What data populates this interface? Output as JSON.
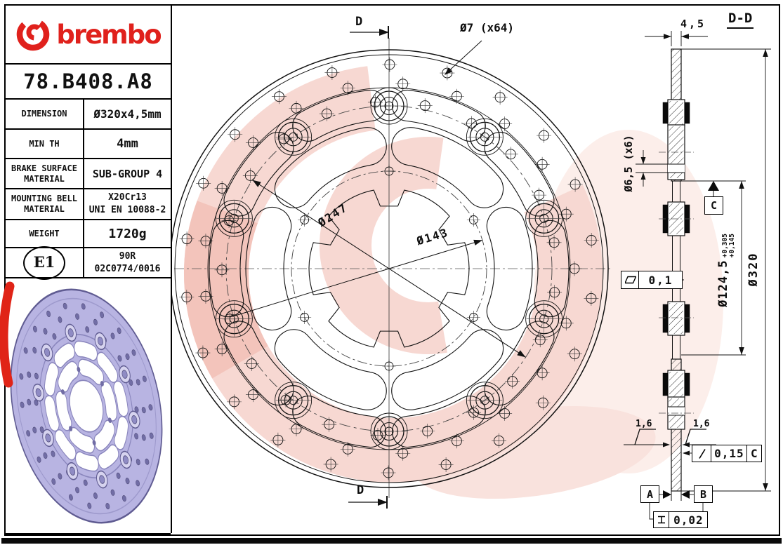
{
  "brand": {
    "wordmark": "brembo",
    "logo_color": "#e0211c"
  },
  "title_block": {
    "part_number": "78.B408.A8",
    "rows": [
      {
        "label": "DIMENSION",
        "value": "Ø320x4,5mm"
      },
      {
        "label": "MIN TH",
        "value": "4mm"
      },
      {
        "label": "BRAKE SURFACE\nMATERIAL",
        "value": "SUB-GROUP 4"
      },
      {
        "label": "MOUNTING BELL\nMATERIAL",
        "value": "X20Cr13\nUNI EN 10088-2"
      },
      {
        "label": "WEIGHT",
        "value": "1720g"
      }
    ],
    "homologation": {
      "mark": "E1",
      "value": "90R\n02C0774/0016"
    }
  },
  "front_view": {
    "hole_note": "Ø7 (x64)",
    "rivet_circle_diameter": "Ø247",
    "bolt_circle_diameter": "Ø143",
    "section_label_top": "D",
    "section_label_bottom": "D"
  },
  "section_view": {
    "title": "D-D",
    "disc_thickness": "4,5",
    "bell_hole_note": "Ø6,5 (x6)",
    "datum_c": "C",
    "flatness_tolerance": "0,1",
    "bell_diameter": "Ø124,5",
    "bell_tol_upper": "+0,305",
    "bell_tol_lower": "+0,145",
    "outer_diameter": "Ø320",
    "roughness_left": "1,6",
    "roughness_right": "1,6",
    "runout_tolerance": "0,15",
    "runout_datum": "C",
    "datum_a": "A",
    "datum_b": "B",
    "parallelism_tolerance": "0,02"
  }
}
